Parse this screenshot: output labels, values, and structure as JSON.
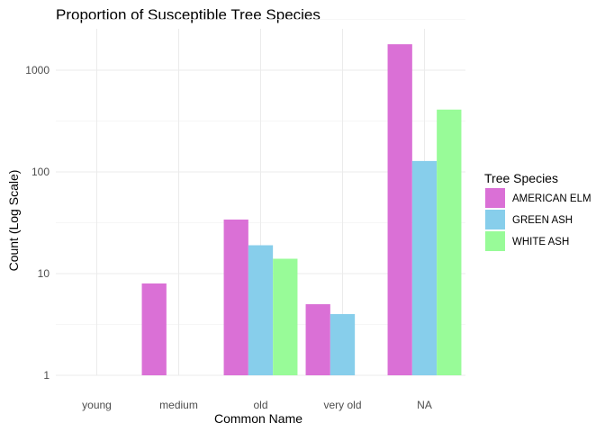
{
  "chart_data": {
    "type": "bar",
    "title": "Proportion of Susceptible Tree Species",
    "xlabel": "Common Name",
    "ylabel": "Count (Log Scale)",
    "y_scale": "log10",
    "ylim": [
      1,
      2000
    ],
    "y_ticks": [
      1,
      10,
      100,
      1000
    ],
    "grid": true,
    "legend_position": "right",
    "legend_title": "Tree Species",
    "categories": [
      "young",
      "medium",
      "old",
      "very old",
      "NA"
    ],
    "series": [
      {
        "name": "AMERICAN ELM",
        "color": "#da70d6",
        "values": [
          null,
          8,
          34,
          5,
          1800
        ]
      },
      {
        "name": "GREEN ASH",
        "color": "#87ceeb",
        "values": [
          null,
          null,
          19,
          4,
          128
        ]
      },
      {
        "name": "WHITE ASH",
        "color": "#98fb98",
        "values": [
          null,
          null,
          14,
          null,
          410
        ]
      }
    ]
  }
}
